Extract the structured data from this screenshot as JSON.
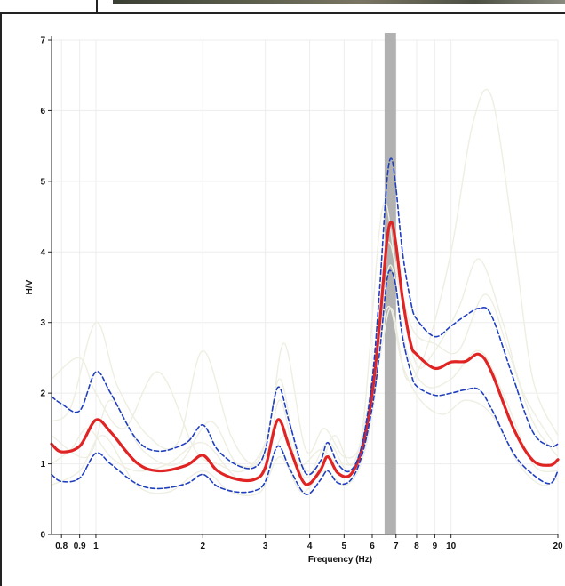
{
  "chart_data": {
    "type": "line",
    "title": "",
    "xlabel": "Frequency (Hz)",
    "ylabel": "H/V",
    "x_scale": "log",
    "xlim": [
      0.75,
      20
    ],
    "ylim": [
      0,
      7
    ],
    "grid": true,
    "x_ticks": [
      {
        "value": 0.8,
        "label": "0.8"
      },
      {
        "value": 0.9,
        "label": "0.9"
      },
      {
        "value": 1,
        "label": "1"
      },
      {
        "value": 2,
        "label": "2"
      },
      {
        "value": 3,
        "label": "3"
      },
      {
        "value": 4,
        "label": "4"
      },
      {
        "value": 5,
        "label": "5"
      },
      {
        "value": 6,
        "label": "6"
      },
      {
        "value": 7,
        "label": "7"
      },
      {
        "value": 8,
        "label": "8"
      },
      {
        "value": 9,
        "label": "9"
      },
      {
        "value": 10,
        "label": "10"
      },
      {
        "value": 20,
        "label": "20"
      }
    ],
    "y_ticks": [
      {
        "value": 0,
        "label": "0"
      },
      {
        "value": 1,
        "label": "1"
      },
      {
        "value": 2,
        "label": "2"
      },
      {
        "value": 3,
        "label": "3"
      },
      {
        "value": 4,
        "label": "4"
      },
      {
        "value": 5,
        "label": "5"
      },
      {
        "value": 6,
        "label": "6"
      },
      {
        "value": 7,
        "label": "7"
      }
    ],
    "peak_band": {
      "x_min": 6.5,
      "x_max": 7.0,
      "color": "#a9a9a9"
    },
    "series": [
      {
        "style": "mean",
        "color": "#e02424",
        "x": [
          0.75,
          0.8,
          0.9,
          1.0,
          1.1,
          1.3,
          1.5,
          1.8,
          2.0,
          2.2,
          2.5,
          2.8,
          3.0,
          3.25,
          3.5,
          3.8,
          4.0,
          4.3,
          4.5,
          4.8,
          5.2,
          5.6,
          6.0,
          6.3,
          6.6,
          6.8,
          7.0,
          7.3,
          7.7,
          8.0,
          9.0,
          10.0,
          11.0,
          12.0,
          13.0,
          15.0,
          17.0,
          19.0,
          20.0
        ],
        "y": [
          1.28,
          1.17,
          1.25,
          1.62,
          1.45,
          1.02,
          0.9,
          0.98,
          1.12,
          0.9,
          0.78,
          0.78,
          0.95,
          1.62,
          1.25,
          0.78,
          0.72,
          0.92,
          1.1,
          0.87,
          0.84,
          1.2,
          2.0,
          3.0,
          4.15,
          4.42,
          4.1,
          3.35,
          2.7,
          2.55,
          2.35,
          2.44,
          2.45,
          2.55,
          2.3,
          1.5,
          1.05,
          0.98,
          1.06
        ]
      },
      {
        "style": "upper",
        "color": "#1f3fbf",
        "x": [
          0.75,
          0.8,
          0.9,
          1.0,
          1.1,
          1.3,
          1.5,
          1.8,
          2.0,
          2.2,
          2.5,
          2.8,
          3.0,
          3.25,
          3.5,
          3.8,
          4.0,
          4.3,
          4.5,
          4.8,
          5.2,
          5.6,
          6.0,
          6.3,
          6.6,
          6.8,
          7.0,
          7.3,
          7.7,
          8.0,
          9.0,
          10.0,
          11.0,
          12.0,
          13.0,
          15.0,
          17.0,
          19.0,
          20.0
        ],
        "y": [
          1.95,
          1.85,
          1.75,
          2.3,
          2.0,
          1.35,
          1.18,
          1.3,
          1.55,
          1.2,
          0.98,
          0.95,
          1.2,
          2.08,
          1.6,
          0.98,
          0.85,
          1.05,
          1.3,
          1.0,
          0.9,
          1.25,
          2.2,
          3.5,
          5.0,
          5.32,
          4.9,
          4.0,
          3.3,
          3.05,
          2.8,
          2.95,
          3.1,
          3.2,
          3.1,
          2.2,
          1.45,
          1.25,
          1.28
        ]
      },
      {
        "style": "lower",
        "color": "#1f3fbf",
        "x": [
          0.75,
          0.8,
          0.9,
          1.0,
          1.1,
          1.3,
          1.5,
          1.8,
          2.0,
          2.2,
          2.5,
          2.8,
          3.0,
          3.25,
          3.5,
          3.8,
          4.0,
          4.3,
          4.5,
          4.8,
          5.2,
          5.6,
          6.0,
          6.3,
          6.6,
          6.8,
          7.0,
          7.3,
          7.7,
          8.0,
          9.0,
          10.0,
          11.0,
          12.0,
          13.0,
          15.0,
          17.0,
          19.0,
          20.0
        ],
        "y": [
          0.85,
          0.75,
          0.8,
          1.15,
          1.0,
          0.72,
          0.65,
          0.72,
          0.85,
          0.68,
          0.6,
          0.62,
          0.75,
          1.25,
          0.95,
          0.62,
          0.58,
          0.78,
          0.9,
          0.73,
          0.76,
          1.1,
          1.8,
          2.6,
          3.6,
          3.72,
          3.5,
          2.8,
          2.3,
          2.1,
          1.97,
          2.0,
          2.05,
          2.05,
          1.78,
          1.15,
          0.85,
          0.72,
          0.9
        ]
      }
    ],
    "faint_window_curves": {
      "color": "#eeeee2",
      "curves": [
        {
          "x": [
            0.75,
            0.85,
            1.0,
            1.15,
            1.4,
            1.7,
            2.0,
            2.4,
            2.8,
            3.1,
            3.4,
            3.9,
            4.4,
            5.0,
            5.6,
            6.3,
            6.8,
            7.5,
            8.5,
            10.0,
            11.5,
            13.0,
            15.0,
            17.0,
            20.0
          ],
          "y": [
            1.6,
            1.8,
            3.0,
            2.1,
            1.4,
            1.3,
            2.6,
            1.4,
            1.0,
            1.6,
            2.7,
            1.2,
            1.5,
            1.1,
            1.3,
            2.5,
            3.2,
            2.2,
            2.6,
            4.0,
            5.8,
            6.2,
            4.2,
            2.2,
            1.4
          ]
        },
        {
          "x": [
            0.75,
            0.9,
            1.0,
            1.2,
            1.5,
            1.9,
            2.2,
            2.6,
            3.0,
            3.3,
            3.7,
            4.2,
            4.7,
            5.3,
            6.0,
            6.6,
            7.2,
            8.0,
            9.0,
            10.5,
            12.0,
            14.0,
            16.0,
            20.0
          ],
          "y": [
            2.2,
            2.5,
            2.0,
            1.5,
            2.3,
            1.2,
            1.0,
            0.9,
            1.3,
            2.2,
            1.1,
            0.9,
            1.4,
            1.0,
            2.2,
            4.1,
            3.4,
            2.4,
            2.6,
            3.2,
            3.9,
            3.0,
            2.0,
            1.2
          ]
        },
        {
          "x": [
            0.75,
            0.85,
            0.95,
            1.1,
            1.3,
            1.6,
            2.0,
            2.5,
            3.0,
            3.4,
            3.9,
            4.5,
            5.2,
            6.0,
            6.7,
            7.5,
            8.5,
            10.0,
            12.0,
            14.0,
            17.0,
            20.0
          ],
          "y": [
            1.0,
            1.2,
            1.5,
            1.1,
            0.9,
            1.0,
            1.3,
            0.8,
            0.9,
            1.4,
            0.8,
            1.3,
            0.9,
            1.7,
            3.8,
            2.6,
            2.1,
            2.2,
            2.6,
            2.0,
            1.0,
            0.9
          ]
        },
        {
          "x": [
            0.75,
            0.9,
            1.05,
            1.3,
            1.6,
            2.0,
            2.4,
            2.9,
            3.3,
            3.8,
            4.4,
            5.1,
            5.8,
            6.6,
            7.3,
            8.2,
            9.5,
            11.0,
            13.0,
            15.5,
            18.0,
            20.0
          ],
          "y": [
            0.7,
            0.9,
            1.4,
            0.7,
            0.6,
            0.9,
            0.6,
            0.6,
            1.1,
            0.6,
            0.9,
            0.7,
            1.3,
            3.2,
            2.4,
            1.9,
            1.7,
            1.9,
            1.7,
            1.0,
            0.7,
            0.8
          ]
        },
        {
          "x": [
            0.75,
            0.95,
            1.1,
            1.35,
            1.7,
            2.1,
            2.5,
            3.0,
            3.3,
            3.7,
            4.3,
            4.9,
            5.6,
            6.4,
            7.0,
            7.8,
            9.0,
            10.5,
            12.5,
            14.5,
            17.0,
            20.0
          ],
          "y": [
            1.4,
            1.1,
            1.9,
            1.2,
            1.0,
            1.6,
            1.0,
            1.1,
            1.9,
            1.0,
            1.2,
            1.0,
            1.4,
            4.6,
            3.8,
            2.9,
            2.7,
            2.6,
            3.4,
            2.6,
            1.6,
            1.1
          ]
        }
      ]
    }
  }
}
